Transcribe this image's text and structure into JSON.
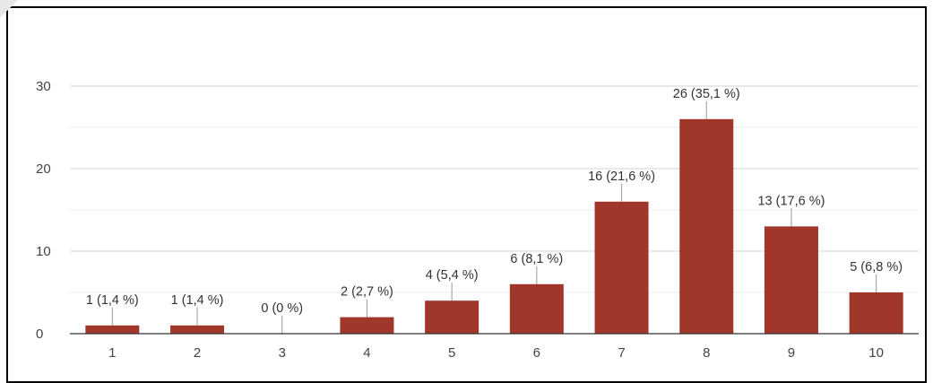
{
  "chart_data": {
    "type": "bar",
    "categories": [
      "1",
      "2",
      "3",
      "4",
      "5",
      "6",
      "7",
      "8",
      "9",
      "10"
    ],
    "values": [
      1,
      1,
      0,
      2,
      4,
      6,
      16,
      26,
      13,
      5
    ],
    "data_labels": [
      "1 (1,4 %)",
      "1 (1,4 %)",
      "0 (0 %)",
      "2 (2,7 %)",
      "4 (5,4 %)",
      "6 (8,1 %)",
      "16 (21,6 %)",
      "26 (35,1 %)",
      "13 (17,6 %)",
      "5 (6,8 %)"
    ],
    "y_ticks": [
      0,
      10,
      20,
      30
    ],
    "ylim": [
      0,
      30
    ],
    "grid": true,
    "bar_color": "#a0372a",
    "title": "",
    "xlabel": "",
    "ylabel": ""
  }
}
